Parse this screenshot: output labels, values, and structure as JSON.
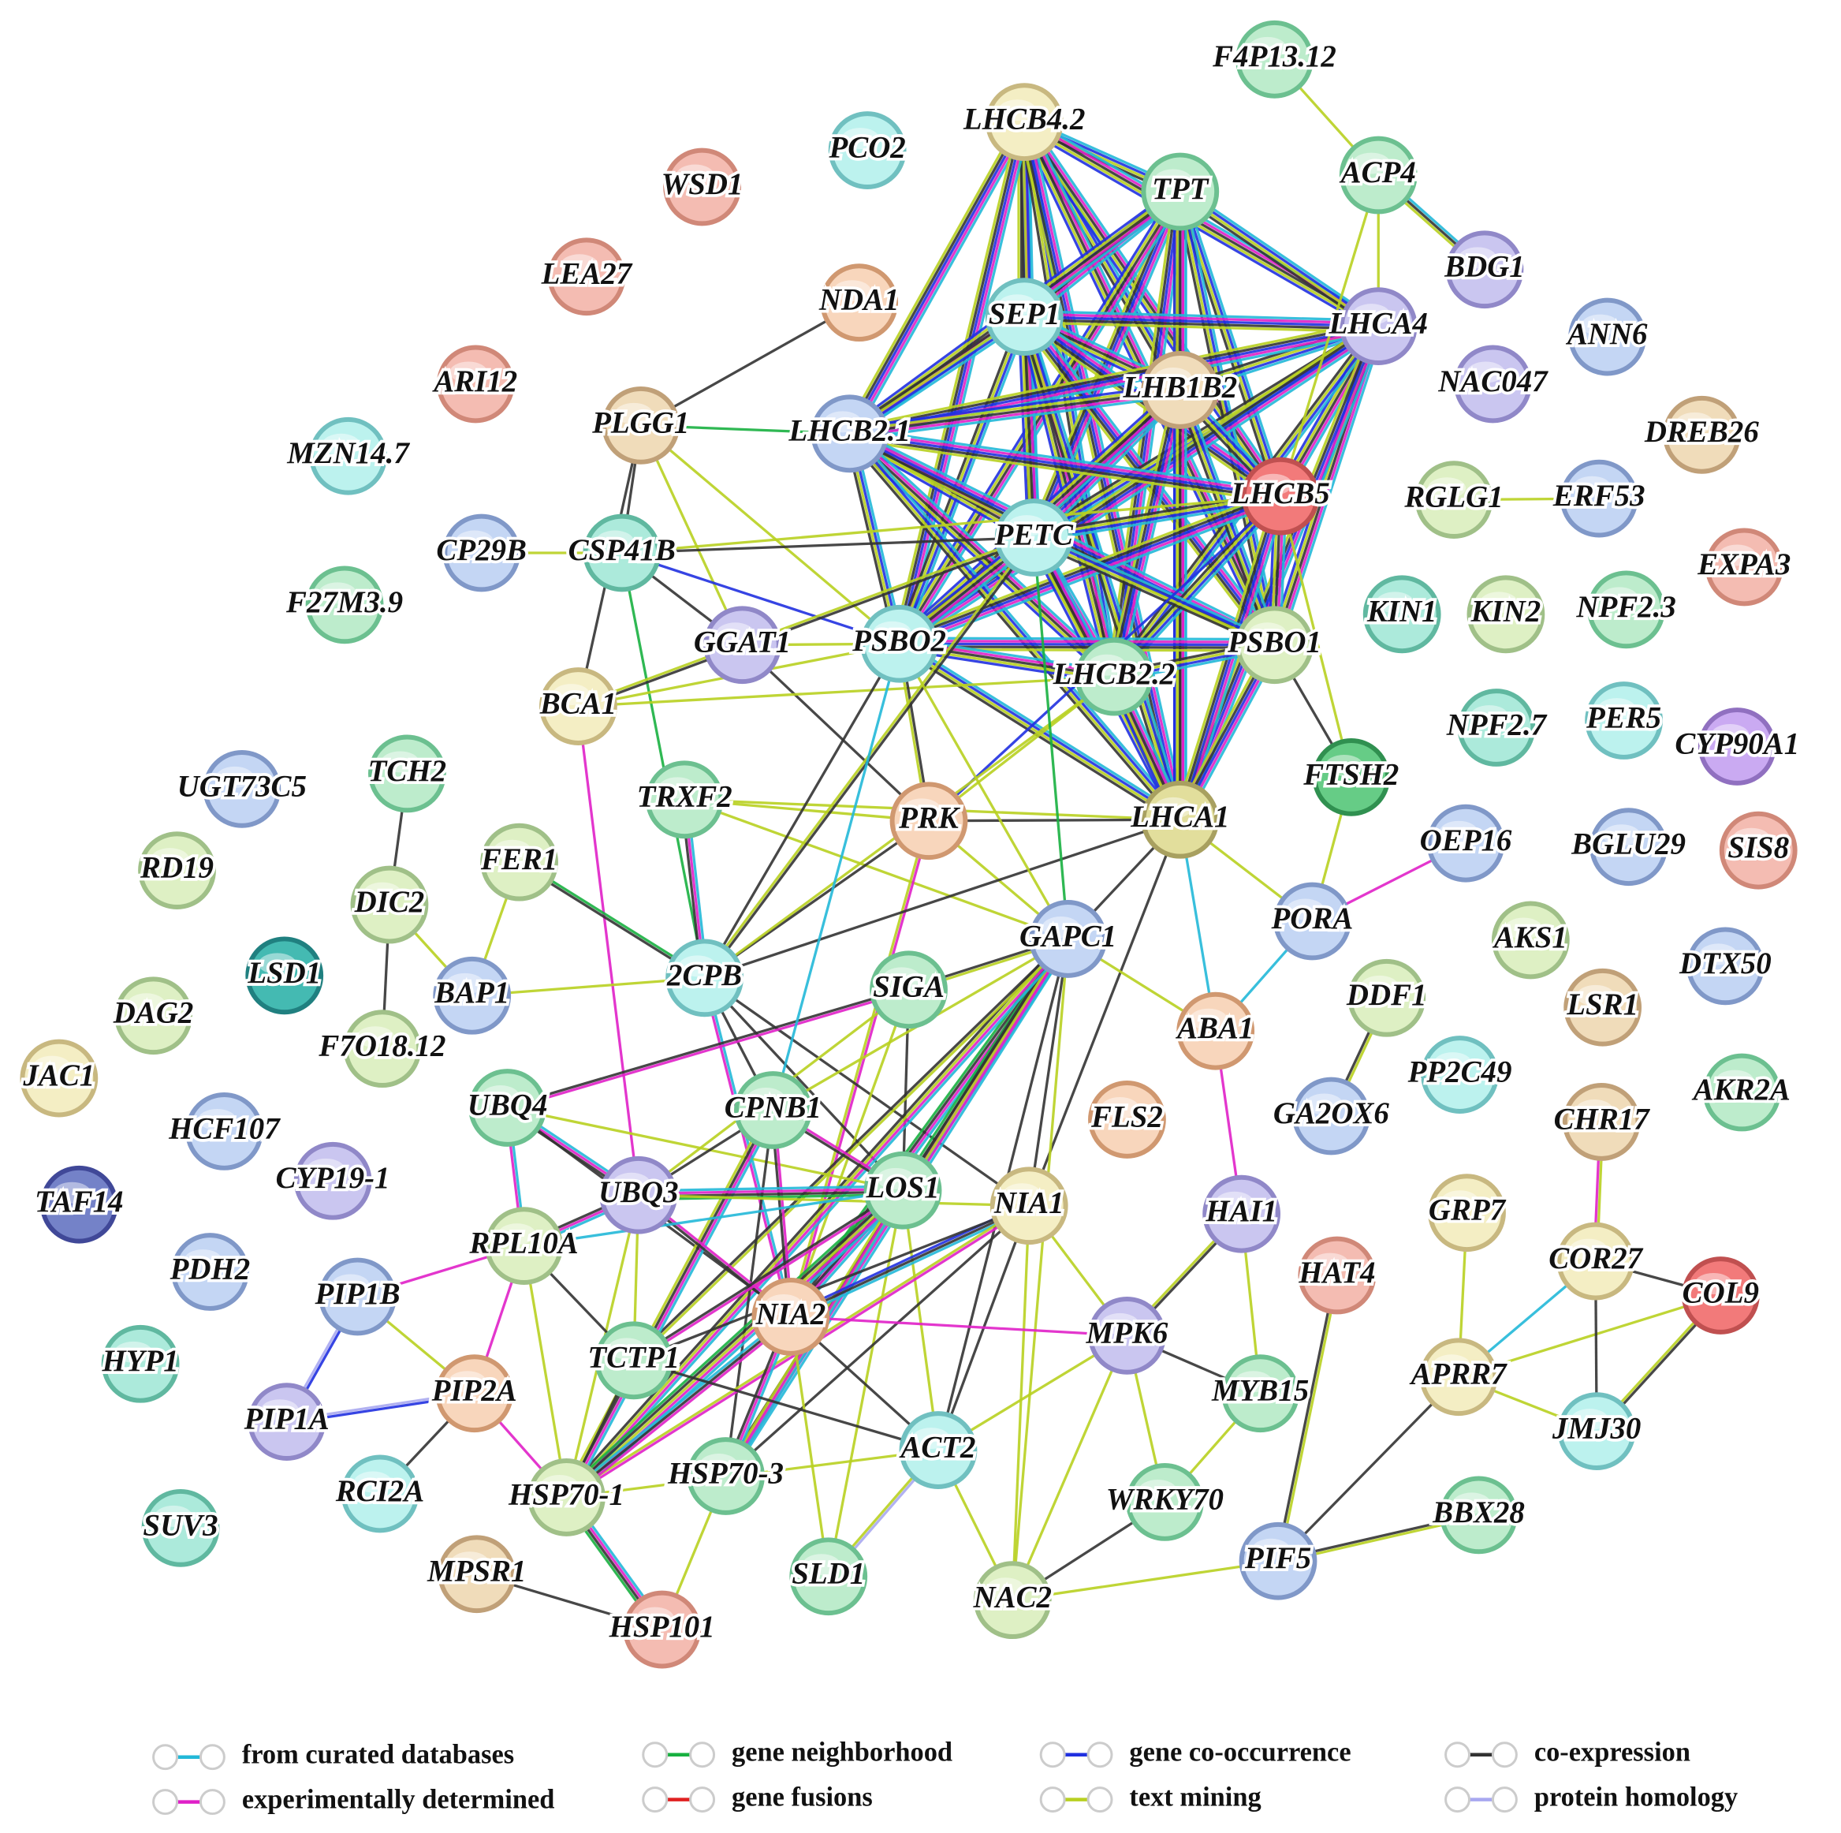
{
  "nodes": [
    {
      "label": "F4P13.12"
    },
    {
      "label": "LHCB4.2"
    },
    {
      "label": "PCO2"
    },
    {
      "label": "WSD1"
    },
    {
      "label": "TPT"
    },
    {
      "label": "ACP4"
    },
    {
      "label": "LEA27"
    },
    {
      "label": "BDG1"
    },
    {
      "label": "NDA1"
    },
    {
      "label": "SEP1"
    },
    {
      "label": "LHCA4"
    },
    {
      "label": "ANN6"
    },
    {
      "label": "ARI12"
    },
    {
      "label": "LHB1B2"
    },
    {
      "label": "NAC047"
    },
    {
      "label": "PLGG1"
    },
    {
      "label": "LHCB2.1"
    },
    {
      "label": "MZN14.7"
    },
    {
      "label": "DREB26"
    },
    {
      "label": "LHCB5"
    },
    {
      "label": "RGLG1"
    },
    {
      "label": "ERF53"
    },
    {
      "label": "PETC"
    },
    {
      "label": "CP29B"
    },
    {
      "label": "CSP41B"
    },
    {
      "label": "EXPA3"
    },
    {
      "label": "F27M3.9"
    },
    {
      "label": "KIN1"
    },
    {
      "label": "KIN2"
    },
    {
      "label": "NPF2.3"
    },
    {
      "label": "PSBO2"
    },
    {
      "label": "GGAT1"
    },
    {
      "label": "PSBO1"
    },
    {
      "label": "LHCB2.2"
    },
    {
      "label": "BCA1"
    },
    {
      "label": "NPF2.7"
    },
    {
      "label": "PER5"
    },
    {
      "label": "CYP90A1"
    },
    {
      "label": "UGT73C5"
    },
    {
      "label": "TCH2"
    },
    {
      "label": "TRXF2"
    },
    {
      "label": "PRK"
    },
    {
      "label": "LHCA1"
    },
    {
      "label": "FTSH2"
    },
    {
      "label": "RD19"
    },
    {
      "label": "FER1"
    },
    {
      "label": "OEP16"
    },
    {
      "label": "BGLU29"
    },
    {
      "label": "SIS8"
    },
    {
      "label": "DIC2"
    },
    {
      "label": "GAPC1"
    },
    {
      "label": "PORA"
    },
    {
      "label": "LSD1"
    },
    {
      "label": "BAP1"
    },
    {
      "label": "2CPB"
    },
    {
      "label": "SIGA"
    },
    {
      "label": "AKS1"
    },
    {
      "label": "DTX50"
    },
    {
      "label": "DAG2"
    },
    {
      "label": "DDF1"
    },
    {
      "label": "ABA1"
    },
    {
      "label": "LSR1"
    },
    {
      "label": "F7O18.12"
    },
    {
      "label": "JAC1"
    },
    {
      "label": "PP2C49"
    },
    {
      "label": "AKR2A"
    },
    {
      "label": "UBQ4"
    },
    {
      "label": "CPNB1"
    },
    {
      "label": "GA2OX6"
    },
    {
      "label": "FLS2"
    },
    {
      "label": "CHR17"
    },
    {
      "label": "HCF107"
    },
    {
      "label": "CYP19-1"
    },
    {
      "label": "TAF14"
    },
    {
      "label": "UBQ3"
    },
    {
      "label": "LOS1"
    },
    {
      "label": "NIA1"
    },
    {
      "label": "HAI1"
    },
    {
      "label": "GRP7"
    },
    {
      "label": "RPL10A"
    },
    {
      "label": "PDH2"
    },
    {
      "label": "PIP1B"
    },
    {
      "label": "HAT4"
    },
    {
      "label": "COR27"
    },
    {
      "label": "COL9"
    },
    {
      "label": "NIA2"
    },
    {
      "label": "MPK6"
    },
    {
      "label": "HYP1"
    },
    {
      "label": "TCTP1"
    },
    {
      "label": "PIP2A"
    },
    {
      "label": "APRR7"
    },
    {
      "label": "MYB15"
    },
    {
      "label": "PIP1A"
    },
    {
      "label": "JMJ30"
    },
    {
      "label": "ACT2"
    },
    {
      "label": "HSP70-1"
    },
    {
      "label": "HSP70-3"
    },
    {
      "label": "RCI2A"
    },
    {
      "label": "WRKY70"
    },
    {
      "label": "BBX28"
    },
    {
      "label": "SUV3"
    },
    {
      "label": "PIF5"
    },
    {
      "label": "MPSR1"
    },
    {
      "label": "SLD1"
    },
    {
      "label": "NAC2"
    },
    {
      "label": "HSP101"
    }
  ],
  "legend": [
    {
      "label": "from curated databases"
    },
    {
      "label": "experimentally determined"
    },
    {
      "label": "gene neighborhood"
    },
    {
      "label": "gene fusions"
    },
    {
      "label": "gene co-occurrence"
    },
    {
      "label": "text mining"
    },
    {
      "label": "co-expression"
    },
    {
      "label": "protein homology"
    }
  ]
}
